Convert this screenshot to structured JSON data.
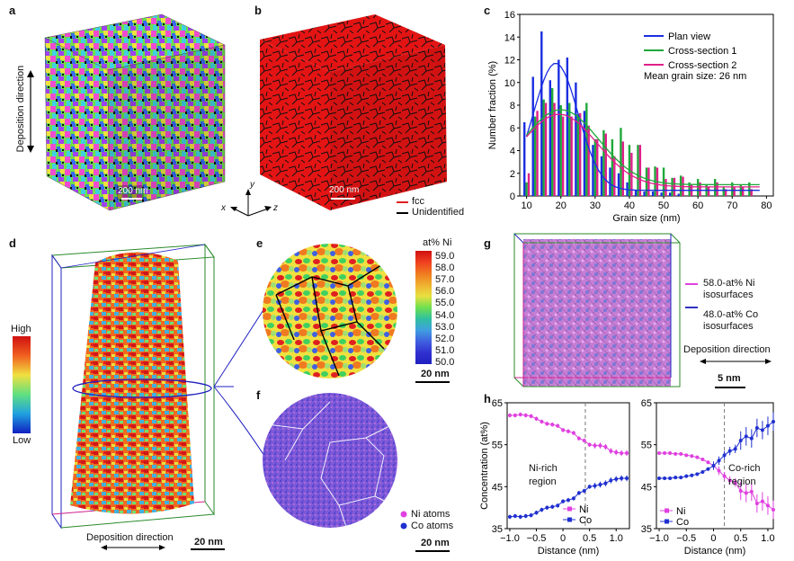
{
  "panels": {
    "a": {
      "label": "a",
      "side_label": "Deposition direction",
      "scale": "200 nm"
    },
    "b": {
      "label": "b",
      "scale": "200 nm",
      "legend": [
        "fcc",
        "Unidentified"
      ],
      "legend_colors": [
        "#e02020",
        "#000000"
      ],
      "axes": {
        "y": "y",
        "x": "x",
        "z": "z"
      }
    },
    "c": {
      "label": "c",
      "annotation": "Mean grain size: 26 nm"
    },
    "d": {
      "label": "d",
      "colorbar_high": "High",
      "colorbar_low": "Low",
      "bottom_label": "Deposition direction",
      "scale": "20 nm"
    },
    "e": {
      "label": "e",
      "colorbar_title": "at% Ni",
      "colorbar_ticks": [
        "59.0",
        "58.0",
        "57.0",
        "56.0",
        "55.0",
        "54.0",
        "53.0",
        "52.0",
        "51.0",
        "50.0"
      ],
      "scale": "20 nm"
    },
    "f": {
      "label": "f",
      "legend": [
        "Ni atoms",
        "Co atoms"
      ],
      "legend_colors": [
        "#e040e0",
        "#2030d0"
      ],
      "scale": "20 nm"
    },
    "g": {
      "label": "g",
      "legend": [
        "58.0-at% Ni isosurfaces",
        "48.0-at% Co isosurfaces"
      ],
      "legend_colors": [
        "#e040e0",
        "#3030c0"
      ],
      "direction": "Deposition direction",
      "scale": "5 nm"
    },
    "h": {
      "label": "h",
      "left_region": "Ni-rich region",
      "right_region": "Co-rich region"
    }
  },
  "chart_data": [
    {
      "type": "bar",
      "panel": "c",
      "xlabel": "Grain size (nm)",
      "ylabel": "Number fraction (%)",
      "xlim": [
        8,
        82
      ],
      "ylim": [
        0,
        16
      ],
      "xticks": [
        10,
        20,
        30,
        40,
        50,
        60,
        70,
        80
      ],
      "yticks": [
        0,
        2,
        4,
        6,
        8,
        10,
        12,
        14,
        16
      ],
      "categories": [
        10,
        12.5,
        15,
        17.5,
        20,
        22.5,
        25,
        27.5,
        30,
        32.5,
        35,
        37.5,
        40,
        42.5,
        45,
        47.5,
        50,
        52.5,
        55,
        57.5,
        60,
        62.5,
        65,
        67.5,
        70,
        72.5,
        75
      ],
      "series": [
        {
          "name": "Plan view",
          "color": "#1a2ee0",
          "values": [
            6.5,
            10.5,
            14.5,
            10.2,
            12.0,
            12.2,
            10.0,
            7.5,
            4.5,
            3.5,
            2.5,
            2.0,
            1.2,
            0.5,
            0.4,
            0.4,
            0.3,
            0.3,
            0.2,
            0,
            0,
            0,
            0,
            0,
            0,
            0,
            0
          ]
        },
        {
          "name": "Cross-section 1",
          "color": "#1fa83a",
          "values": [
            1.2,
            7.0,
            8.5,
            9.5,
            8.0,
            8.2,
            7.2,
            8.2,
            5.0,
            5.8,
            5.0,
            6.0,
            4.5,
            4.5,
            2.5,
            2.6,
            2.5,
            1.6,
            1.8,
            1.2,
            1.5,
            1.0,
            1.5,
            0.8,
            1.2,
            1.0,
            1.2
          ]
        },
        {
          "name": "Cross-section 2",
          "color": "#e0208a",
          "values": [
            2.0,
            7.5,
            8.2,
            8.2,
            7.0,
            7.0,
            7.3,
            6.2,
            5.0,
            5.5,
            3.5,
            4.8,
            3.8,
            4.5,
            2.5,
            2.5,
            1.5,
            1.6,
            1.7,
            1.0,
            1.2,
            0.8,
            1.2,
            0.6,
            0.8,
            0.8,
            0.6
          ]
        }
      ],
      "legend_position": "top-right"
    },
    {
      "type": "line",
      "panel": "h-left",
      "xlabel": "Distance (nm)",
      "ylabel": "Concentration (at%)",
      "xlim": [
        -1.05,
        1.25
      ],
      "ylim": [
        35,
        65
      ],
      "xticks": [
        "−1.0",
        "−0.5",
        "0",
        "0.5",
        "1.0"
      ],
      "yticks": [
        "35",
        "45",
        "55",
        "65"
      ],
      "divider_x": 0.42,
      "x": [
        -1.0,
        -0.9,
        -0.8,
        -0.7,
        -0.6,
        -0.5,
        -0.4,
        -0.3,
        -0.2,
        -0.1,
        0,
        0.1,
        0.2,
        0.3,
        0.4,
        0.5,
        0.6,
        0.7,
        0.8,
        0.9,
        1.0,
        1.1,
        1.2
      ],
      "series": [
        {
          "name": "Ni",
          "color": "#e040e0",
          "values": [
            62.0,
            62.0,
            62.2,
            62.0,
            61.8,
            61.2,
            60.5,
            60.0,
            59.8,
            59.5,
            58.5,
            58.2,
            57.8,
            56.5,
            56.0,
            55.0,
            54.8,
            54.8,
            54.5,
            53.5,
            53.2,
            53.0,
            53.0
          ]
        },
        {
          "name": "Co",
          "color": "#2030d0",
          "values": [
            37.8,
            38.0,
            37.8,
            38.0,
            38.2,
            38.8,
            39.5,
            40.0,
            40.2,
            40.5,
            41.5,
            41.8,
            42.2,
            43.5,
            44.0,
            45.0,
            45.2,
            45.5,
            45.8,
            46.5,
            46.8,
            47.0,
            47.0
          ]
        }
      ],
      "legend_position": "bottom-right"
    },
    {
      "type": "line",
      "panel": "h-right",
      "xlabel": "Distance (nm)",
      "xlim": [
        -1.05,
        1.1
      ],
      "ylim": [
        35,
        65
      ],
      "xticks": [
        "−1.0",
        "−0.5",
        "0",
        "0.5",
        "1.0"
      ],
      "yticks": [
        "35",
        "45",
        "55",
        "65"
      ],
      "divider_x": 0.2,
      "x": [
        -1.0,
        -0.9,
        -0.8,
        -0.7,
        -0.6,
        -0.5,
        -0.4,
        -0.3,
        -0.2,
        -0.1,
        0,
        0.1,
        0.2,
        0.3,
        0.4,
        0.5,
        0.6,
        0.7,
        0.8,
        0.9,
        1.0,
        1.1
      ],
      "series": [
        {
          "name": "Ni",
          "color": "#e040e0",
          "values": [
            53.0,
            53.0,
            53.0,
            52.8,
            52.8,
            52.5,
            52.3,
            52.0,
            51.5,
            50.8,
            50.0,
            48.8,
            47.5,
            46.5,
            46.0,
            44.0,
            43.5,
            43.8,
            41.0,
            41.5,
            40.5,
            39.5
          ]
        },
        {
          "name": "Co",
          "color": "#2030d0",
          "values": [
            47.0,
            47.0,
            47.0,
            47.2,
            47.2,
            47.5,
            47.7,
            48.0,
            48.5,
            49.2,
            50.0,
            51.2,
            52.5,
            53.5,
            54.0,
            56.0,
            57.0,
            56.5,
            59.0,
            58.5,
            59.5,
            60.5
          ]
        }
      ],
      "legend_position": "bottom-left"
    }
  ]
}
